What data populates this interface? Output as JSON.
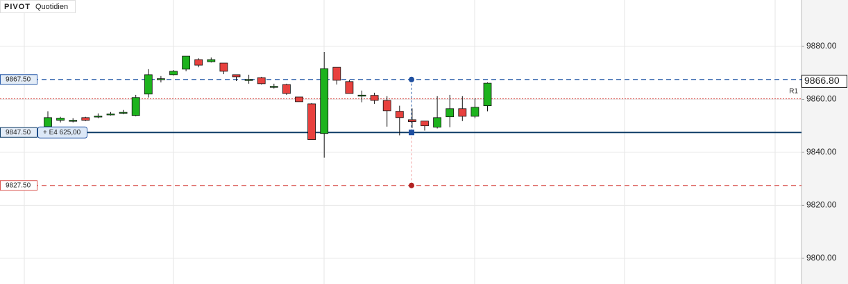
{
  "chart_data": {
    "type": "candlestick",
    "title": "PIVOT",
    "subtitle": "Quotidien",
    "up_color": "#1db31d",
    "down_color": "#e8413e",
    "ylim": [
      9790.3,
      9897.5
    ],
    "yticks": [
      {
        "value": 9800,
        "label": "9800.00"
      },
      {
        "value": 9820,
        "label": "9820.00"
      },
      {
        "value": 9840,
        "label": "9840.00"
      },
      {
        "value": 9860,
        "label": "9860.00"
      },
      {
        "value": 9880,
        "label": "9880.00"
      }
    ],
    "grid": true,
    "open": [
      9849.7,
      9852.1,
      9852.0,
      9853.1,
      9853.6,
      9854.4,
      9855.0,
      9853.9,
      9862.0,
      9867.7,
      9869.3,
      9871.4,
      9875.0,
      9874.2,
      9873.7,
      9869.3,
      9867.4,
      9868.2,
      9864.8,
      9865.6,
      9860.9,
      9858.3,
      9847.1,
      9872.1,
      9866.7,
      9861.5,
      9861.5,
      9859.6,
      9855.5,
      9852.3,
      9851.8,
      9849.5,
      9853.4,
      9856.5,
      9853.6,
      9857.6
    ],
    "high": [
      9855.5,
      9853.4,
      9852.9,
      9853.4,
      9854.7,
      9855.2,
      9856.0,
      9861.7,
      9871.4,
      9868.8,
      9871.1,
      9876.3,
      9875.5,
      9875.8,
      9873.7,
      9869.3,
      9869.3,
      9868.5,
      9865.9,
      9865.9,
      9860.9,
      9858.6,
      9877.9,
      9872.1,
      9867.4,
      9863.3,
      9862.5,
      9861.2,
      9857.6,
      9856.6,
      9851.8,
      9861.2,
      9861.7,
      9861.2,
      9860.4,
      9866.4
    ],
    "low": [
      9849.7,
      9851.3,
      9851.3,
      9851.8,
      9852.9,
      9853.9,
      9854.4,
      9853.6,
      9860.7,
      9866.4,
      9869.0,
      9870.6,
      9872.1,
      9873.9,
      9869.5,
      9866.9,
      9865.9,
      9865.6,
      9864.1,
      9861.7,
      9859.1,
      9844.8,
      9838.0,
      9865.6,
      9862.2,
      9858.9,
      9858.3,
      9849.7,
      9846.4,
      9849.2,
      9848.2,
      9849.0,
      9849.5,
      9851.8,
      9852.9,
      9855.5
    ],
    "close": [
      9853.1,
      9852.9,
      9852.1,
      9852.1,
      9853.7,
      9854.5,
      9855.1,
      9860.7,
      9869.3,
      9867.8,
      9870.6,
      9876.3,
      9872.9,
      9875.0,
      9870.6,
      9868.5,
      9867.5,
      9865.9,
      9864.9,
      9862.2,
      9859.1,
      9844.8,
      9871.6,
      9867.2,
      9862.2,
      9861.6,
      9859.6,
      9855.7,
      9853.1,
      9851.6,
      9850.0,
      9853.1,
      9856.5,
      9853.6,
      9857.0,
      9866.1
    ],
    "levels": [
      {
        "value": 9867.5,
        "label": "9867.50",
        "color": "#2a5caa",
        "style": "dashed"
      },
      {
        "value": 9847.5,
        "label": "9847.50",
        "color": "#0d3b66",
        "style": "solid",
        "annotation": "+ E4 625,00"
      },
      {
        "value": 9827.5,
        "label": "9827.50",
        "color": "#d9534f",
        "style": "dashed"
      }
    ],
    "pivot": {
      "value": 9860.2,
      "name": "R1",
      "color": "#d9534f"
    },
    "last_price": {
      "value": 9866.8,
      "label": "9866.80"
    }
  }
}
